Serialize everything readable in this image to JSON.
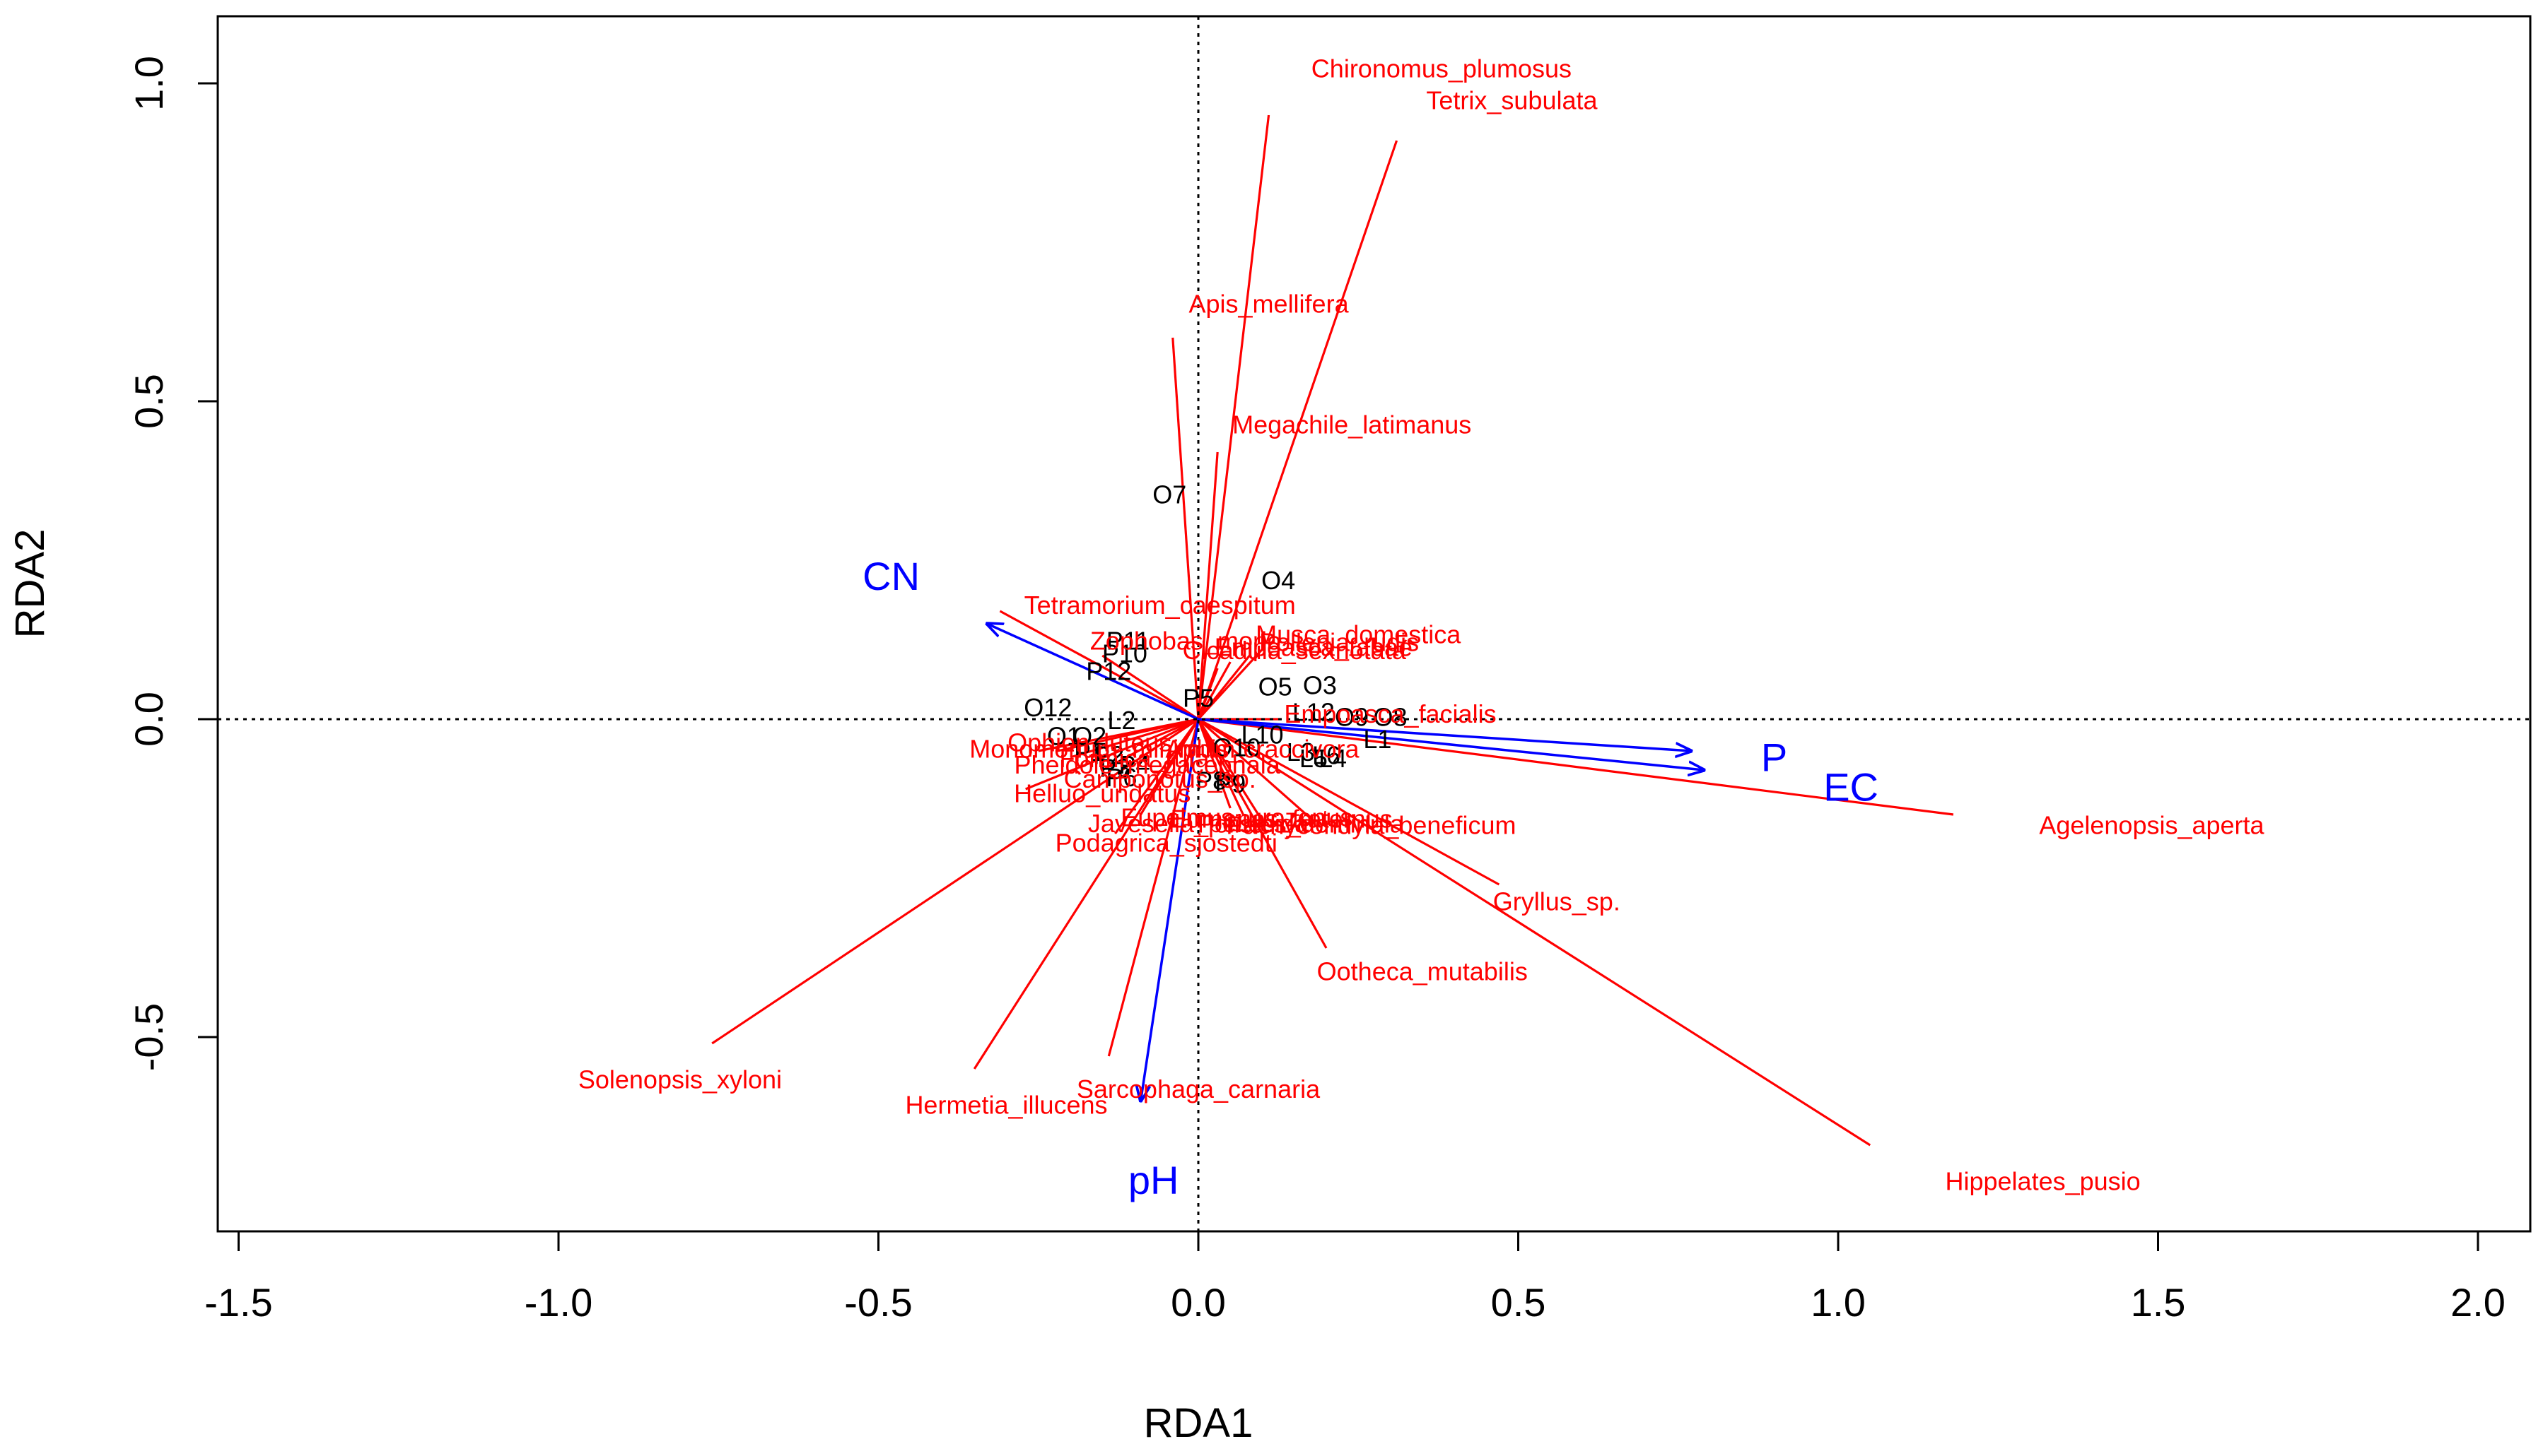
{
  "chart_data": {
    "type": "scatter",
    "subtype": "rda-biplot",
    "title": "",
    "xlabel": "RDA1",
    "ylabel": "RDA2",
    "xlim": [
      -1.5,
      2.0
    ],
    "ylim": [
      -0.8,
      1.05
    ],
    "xticks": [
      "-1.5",
      "-1.0",
      "-0.5",
      "0.0",
      "0.5",
      "1.0",
      "1.5",
      "2.0"
    ],
    "xtick_values": [
      -1.5,
      -1.0,
      -0.5,
      0.0,
      0.5,
      1.0,
      1.5,
      2.0
    ],
    "yticks": [
      "-0.5",
      "0.0",
      "0.5",
      "1.0"
    ],
    "ytick_values": [
      -0.5,
      0.0,
      0.5,
      1.0
    ],
    "reference_lines": {
      "x": 0,
      "y": 0,
      "style": "dotted"
    },
    "colors": {
      "species": "#ff0000",
      "env": "#0000ff",
      "sites": "#000000",
      "axis": "#000000"
    },
    "species": [
      {
        "name": "Chironomus_plumosus",
        "x": 0.11,
        "y": 0.95,
        "lx": 0.38,
        "ly": 1.02
      },
      {
        "name": "Tetrix_subulata",
        "x": 0.31,
        "y": 0.91,
        "lx": 0.49,
        "ly": 0.97
      },
      {
        "name": "Apis_mellifera",
        "x": -0.04,
        "y": 0.6,
        "lx": 0.11,
        "ly": 0.65
      },
      {
        "name": "Megachile_latimanus",
        "x": 0.03,
        "y": 0.42,
        "lx": 0.24,
        "ly": 0.46
      },
      {
        "name": "Tetramorium_caespitum",
        "x": -0.31,
        "y": 0.17,
        "lx": -0.06,
        "ly": 0.176
      },
      {
        "name": "Zophobas_morio",
        "x": -0.15,
        "y": 0.1,
        "lx": -0.02,
        "ly": 0.12
      },
      {
        "name": "Musca_domestica",
        "x": 0.1,
        "y": 0.11,
        "lx": 0.25,
        "ly": 0.13
      },
      {
        "name": "Pollenia_rudis",
        "x": 0.08,
        "y": 0.1,
        "lx": 0.22,
        "ly": 0.118
      },
      {
        "name": "Empoasca_fabae",
        "x": 0.05,
        "y": 0.09,
        "lx": 0.18,
        "ly": 0.11
      },
      {
        "name": "Cicadula_sexnotata",
        "x": 0.03,
        "y": 0.08,
        "lx": 0.15,
        "ly": 0.105
      },
      {
        "name": "Empoasca_facialis",
        "x": 0.13,
        "y": 0.0,
        "lx": 0.3,
        "ly": 0.005
      },
      {
        "name": "Agelenopsis_aperta",
        "x": 1.18,
        "y": -0.15,
        "lx": 1.49,
        "ly": -0.17
      },
      {
        "name": "Gryllus_sp.",
        "x": 0.47,
        "y": -0.26,
        "lx": 0.56,
        "ly": -0.29
      },
      {
        "name": "Eumenes_fraternus",
        "x": 0.07,
        "y": -0.15,
        "lx": 0.13,
        "ly": -0.16
      },
      {
        "name": "Polistes_dominula",
        "x": 0.1,
        "y": -0.16,
        "lx": 0.16,
        "ly": -0.168
      },
      {
        "name": "Eupelmus_urozonus",
        "x": 0.05,
        "y": -0.14,
        "lx": 0.06,
        "ly": -0.158
      },
      {
        "name": "Pachycondyla_beneficum",
        "x": 0.18,
        "y": -0.16,
        "lx": 0.27,
        "ly": -0.17
      },
      {
        "name": "Javesella_pellucida",
        "x": -0.09,
        "y": -0.15,
        "lx": 0.0,
        "ly": -0.167
      },
      {
        "name": "Podagrica_sjostedti",
        "x": -0.13,
        "y": -0.18,
        "lx": -0.05,
        "ly": -0.198
      },
      {
        "name": "Ootheca_mutabilis",
        "x": 0.2,
        "y": -0.36,
        "lx": 0.35,
        "ly": -0.4
      },
      {
        "name": "Hippelates_pusio",
        "x": 1.05,
        "y": -0.67,
        "lx": 1.32,
        "ly": -0.73
      },
      {
        "name": "Solenopsis_xyloni",
        "x": -0.76,
        "y": -0.51,
        "lx": -0.81,
        "ly": -0.57
      },
      {
        "name": "Hermetia_illucens",
        "x": -0.35,
        "y": -0.55,
        "lx": -0.3,
        "ly": -0.61
      },
      {
        "name": "Sarcophaga_carnaria",
        "x": -0.14,
        "y": -0.53,
        "lx": 0.0,
        "ly": -0.585
      },
      {
        "name": "Helluo_undatus",
        "x": -0.27,
        "y": -0.11,
        "lx": -0.15,
        "ly": -0.12
      },
      {
        "name": "Camponotus_sp.",
        "x": -0.05,
        "y": -0.08,
        "lx": -0.06,
        "ly": -0.097
      },
      {
        "name": "Monomorium_minimum",
        "x": -0.25,
        "y": -0.05,
        "lx": -0.15,
        "ly": -0.05
      },
      {
        "name": "Formica_rufa",
        "x": -0.2,
        "y": -0.06,
        "lx": -0.1,
        "ly": -0.065
      },
      {
        "name": "Pheidole_megacephala",
        "x": -0.15,
        "y": -0.08,
        "lx": -0.08,
        "ly": -0.075
      },
      {
        "name": "Aphis_craccivora",
        "x": 0.02,
        "y": -0.05,
        "lx": 0.1,
        "ly": -0.05
      },
      {
        "name": "Ophion_luteus",
        "x": -0.22,
        "y": -0.05,
        "lx": -0.17,
        "ly": -0.04
      }
    ],
    "env": [
      {
        "name": "CN",
        "x": -0.33,
        "y": 0.15,
        "lx": -0.48,
        "ly": 0.22
      },
      {
        "name": "P",
        "x": 0.77,
        "y": -0.05,
        "lx": 0.9,
        "ly": -0.065
      },
      {
        "name": "EC",
        "x": 0.79,
        "y": -0.08,
        "lx": 1.02,
        "ly": -0.112
      },
      {
        "name": "pH",
        "x": -0.09,
        "y": -0.6,
        "lx": -0.07,
        "ly": -0.73
      }
    ],
    "sites": [
      {
        "name": "O7",
        "x": -0.045,
        "y": 0.35
      },
      {
        "name": "O4",
        "x": 0.125,
        "y": 0.215
      },
      {
        "name": "P11",
        "x": -0.11,
        "y": 0.12
      },
      {
        "name": "P10",
        "x": -0.115,
        "y": 0.1
      },
      {
        "name": "P12",
        "x": -0.14,
        "y": 0.072
      },
      {
        "name": "O5",
        "x": 0.12,
        "y": 0.048
      },
      {
        "name": "O3",
        "x": 0.19,
        "y": 0.05
      },
      {
        "name": "P5",
        "x": 0.0,
        "y": 0.03
      },
      {
        "name": "O12",
        "x": -0.235,
        "y": 0.015
      },
      {
        "name": "L2",
        "x": -0.12,
        "y": -0.005
      },
      {
        "name": "L12",
        "x": 0.18,
        "y": 0.008
      },
      {
        "name": "O9",
        "x": 0.24,
        "y": 0.0
      },
      {
        "name": "O8",
        "x": 0.3,
        "y": 0.0
      },
      {
        "name": "O2",
        "x": -0.17,
        "y": -0.03
      },
      {
        "name": "O1",
        "x": -0.21,
        "y": -0.03
      },
      {
        "name": "P1",
        "x": -0.17,
        "y": -0.055
      },
      {
        "name": "P2",
        "x": -0.14,
        "y": -0.06
      },
      {
        "name": "P3",
        "x": -0.13,
        "y": -0.08
      },
      {
        "name": "P4",
        "x": -0.1,
        "y": -0.075
      },
      {
        "name": "P6",
        "x": -0.12,
        "y": -0.095
      },
      {
        "name": "L10",
        "x": 0.1,
        "y": -0.028
      },
      {
        "name": "O10",
        "x": 0.06,
        "y": -0.048
      },
      {
        "name": "L3",
        "x": 0.16,
        "y": -0.055
      },
      {
        "name": "L6",
        "x": 0.2,
        "y": -0.06
      },
      {
        "name": "L5",
        "x": 0.18,
        "y": -0.065
      },
      {
        "name": "L4",
        "x": 0.21,
        "y": -0.065
      },
      {
        "name": "L1",
        "x": 0.28,
        "y": -0.035
      },
      {
        "name": "P8",
        "x": 0.02,
        "y": -0.1
      },
      {
        "name": "P9",
        "x": 0.05,
        "y": -0.105
      }
    ]
  }
}
